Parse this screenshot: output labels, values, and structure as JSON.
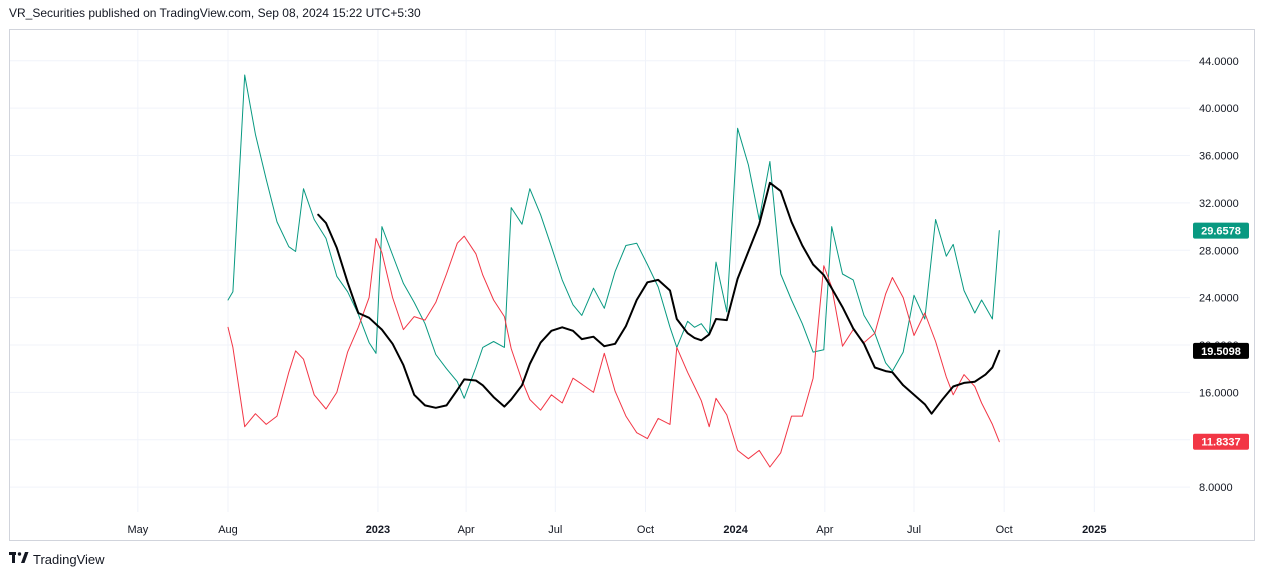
{
  "header": {
    "text": "VR_Securities published on TradingView.com, Sep 08, 2024 15:22 UTC+5:30"
  },
  "footer": {
    "brand": "TradingView",
    "logo_icon": "tradingview-logo-icon"
  },
  "chart_data": {
    "type": "line",
    "title": "",
    "xlabel": "",
    "ylabel": "",
    "ylim": [
      5.9,
      46.6
    ],
    "y_ticks": [
      "44.0000",
      "40.0000",
      "36.0000",
      "32.0000",
      "28.0000",
      "24.0000",
      "20.0000",
      "16.0000",
      "12.0000",
      "8.0000"
    ],
    "x_ticks": [
      "May",
      "Aug",
      "2023",
      "Apr",
      "Jul",
      "Oct",
      "2024",
      "Apr",
      "Jul",
      "Oct",
      "2025"
    ],
    "x_ticks_bold": [
      "2023",
      "2024",
      "2025"
    ],
    "grid": true,
    "colors": {
      "teal": "#089981",
      "red": "#f23645",
      "black": "#000000",
      "grid": "#f0f3fa",
      "axis_text": "#131722"
    },
    "price_labels": [
      {
        "series": 0,
        "text": "29.6578",
        "value": 29.6578,
        "bg": "#089981",
        "fg": "#ffffff"
      },
      {
        "series": 2,
        "text": "19.5098",
        "value": 19.5098,
        "bg": "#000000",
        "fg": "#ffffff"
      },
      {
        "series": 1,
        "text": "11.8337",
        "value": 11.8337,
        "bg": "#f23645",
        "fg": "#ffffff"
      }
    ],
    "series": [
      {
        "color": "#089981",
        "width": 1,
        "points": [
          [
            "2022-08-01",
            23.8
          ],
          [
            "2022-08-06",
            24.5
          ],
          [
            "2022-08-18",
            42.8
          ],
          [
            "2022-08-29",
            37.8
          ],
          [
            "2022-09-09",
            34.0
          ],
          [
            "2022-09-20",
            30.4
          ],
          [
            "2022-10-02",
            28.3
          ],
          [
            "2022-10-09",
            27.9
          ],
          [
            "2022-10-17",
            33.2
          ],
          [
            "2022-10-28",
            30.6
          ],
          [
            "2022-11-09",
            29.0
          ],
          [
            "2022-11-20",
            25.8
          ],
          [
            "2022-12-01",
            24.5
          ],
          [
            "2022-12-12",
            22.6
          ],
          [
            "2022-12-23",
            20.2
          ],
          [
            "2022-12-30",
            19.3
          ],
          [
            "2023-01-05",
            30.0
          ],
          [
            "2023-01-16",
            27.6
          ],
          [
            "2023-01-27",
            25.2
          ],
          [
            "2023-02-07",
            23.6
          ],
          [
            "2023-02-18",
            21.8
          ],
          [
            "2023-03-01",
            19.2
          ],
          [
            "2023-03-12",
            18.0
          ],
          [
            "2023-03-23",
            16.9
          ],
          [
            "2023-03-30",
            15.5
          ],
          [
            "2023-04-11",
            18.1
          ],
          [
            "2023-04-18",
            19.8
          ],
          [
            "2023-04-29",
            20.3
          ],
          [
            "2023-05-10",
            19.8
          ],
          [
            "2023-05-17",
            31.6
          ],
          [
            "2023-05-28",
            30.2
          ],
          [
            "2023-06-05",
            33.2
          ],
          [
            "2023-06-16",
            31.0
          ],
          [
            "2023-06-27",
            28.3
          ],
          [
            "2023-07-08",
            25.5
          ],
          [
            "2023-07-19",
            23.4
          ],
          [
            "2023-07-28",
            22.5
          ],
          [
            "2023-08-09",
            24.8
          ],
          [
            "2023-08-20",
            23.1
          ],
          [
            "2023-08-31",
            26.2
          ],
          [
            "2023-09-11",
            28.4
          ],
          [
            "2023-09-22",
            28.6
          ],
          [
            "2023-10-03",
            26.8
          ],
          [
            "2023-10-14",
            24.9
          ],
          [
            "2023-10-26",
            21.5
          ],
          [
            "2023-11-02",
            19.8
          ],
          [
            "2023-11-13",
            22.0
          ],
          [
            "2023-11-20",
            21.5
          ],
          [
            "2023-11-27",
            21.8
          ],
          [
            "2023-12-05",
            20.9
          ],
          [
            "2023-12-12",
            27.0
          ],
          [
            "2023-12-23",
            22.8
          ],
          [
            "2024-01-03",
            38.3
          ],
          [
            "2024-01-14",
            35.2
          ],
          [
            "2024-01-25",
            30.6
          ],
          [
            "2024-02-05",
            35.5
          ],
          [
            "2024-02-16",
            26.0
          ],
          [
            "2024-02-27",
            23.8
          ],
          [
            "2024-03-09",
            21.8
          ],
          [
            "2024-03-20",
            19.4
          ],
          [
            "2024-03-31",
            19.6
          ],
          [
            "2024-04-08",
            30.0
          ],
          [
            "2024-04-19",
            26.0
          ],
          [
            "2024-04-30",
            25.5
          ],
          [
            "2024-05-11",
            22.5
          ],
          [
            "2024-05-22",
            21.0
          ],
          [
            "2024-06-02",
            18.5
          ],
          [
            "2024-06-09",
            17.8
          ],
          [
            "2024-06-20",
            19.4
          ],
          [
            "2024-07-01",
            24.2
          ],
          [
            "2024-07-12",
            22.2
          ],
          [
            "2024-07-23",
            30.6
          ],
          [
            "2024-08-03",
            27.5
          ],
          [
            "2024-08-10",
            28.5
          ],
          [
            "2024-08-21",
            24.6
          ],
          [
            "2024-09-01",
            22.7
          ],
          [
            "2024-09-08",
            23.8
          ],
          [
            "2024-09-19",
            22.2
          ],
          [
            "2024-09-26",
            29.6578
          ]
        ]
      },
      {
        "color": "#f23645",
        "width": 1,
        "points": [
          [
            "2022-08-01",
            21.5
          ],
          [
            "2022-08-06",
            19.8
          ],
          [
            "2022-08-18",
            13.1
          ],
          [
            "2022-08-29",
            14.2
          ],
          [
            "2022-09-09",
            13.3
          ],
          [
            "2022-09-20",
            14.0
          ],
          [
            "2022-10-02",
            17.7
          ],
          [
            "2022-10-09",
            19.5
          ],
          [
            "2022-10-17",
            18.8
          ],
          [
            "2022-10-28",
            15.8
          ],
          [
            "2022-11-09",
            14.6
          ],
          [
            "2022-11-20",
            16.0
          ],
          [
            "2022-12-01",
            19.4
          ],
          [
            "2022-12-12",
            21.5
          ],
          [
            "2022-12-23",
            24.0
          ],
          [
            "2022-12-30",
            29.0
          ],
          [
            "2023-01-05",
            27.8
          ],
          [
            "2023-01-16",
            24.0
          ],
          [
            "2023-01-27",
            21.3
          ],
          [
            "2023-02-07",
            22.4
          ],
          [
            "2023-02-18",
            22.1
          ],
          [
            "2023-03-01",
            23.6
          ],
          [
            "2023-03-12",
            26.0
          ],
          [
            "2023-03-23",
            28.6
          ],
          [
            "2023-03-30",
            29.2
          ],
          [
            "2023-04-11",
            27.7
          ],
          [
            "2023-04-18",
            25.9
          ],
          [
            "2023-04-29",
            23.8
          ],
          [
            "2023-05-10",
            22.4
          ],
          [
            "2023-05-17",
            19.7
          ],
          [
            "2023-05-28",
            17.0
          ],
          [
            "2023-06-05",
            15.4
          ],
          [
            "2023-06-16",
            14.5
          ],
          [
            "2023-06-27",
            15.8
          ],
          [
            "2023-07-08",
            15.1
          ],
          [
            "2023-07-19",
            17.2
          ],
          [
            "2023-07-28",
            16.7
          ],
          [
            "2023-08-09",
            16.0
          ],
          [
            "2023-08-20",
            19.3
          ],
          [
            "2023-08-31",
            16.1
          ],
          [
            "2023-09-11",
            14.0
          ],
          [
            "2023-09-22",
            12.6
          ],
          [
            "2023-10-03",
            12.1
          ],
          [
            "2023-10-14",
            13.8
          ],
          [
            "2023-10-26",
            13.3
          ],
          [
            "2023-11-02",
            19.8
          ],
          [
            "2023-11-13",
            17.7
          ],
          [
            "2023-11-20",
            16.5
          ],
          [
            "2023-11-27",
            15.3
          ],
          [
            "2023-12-05",
            13.1
          ],
          [
            "2023-12-12",
            15.5
          ],
          [
            "2023-12-23",
            14.1
          ],
          [
            "2024-01-03",
            11.1
          ],
          [
            "2024-01-14",
            10.4
          ],
          [
            "2024-01-25",
            11.1
          ],
          [
            "2024-02-05",
            9.7
          ],
          [
            "2024-02-16",
            10.9
          ],
          [
            "2024-02-27",
            14.0
          ],
          [
            "2024-03-09",
            14.0
          ],
          [
            "2024-03-20",
            17.2
          ],
          [
            "2024-03-31",
            26.7
          ],
          [
            "2024-04-08",
            24.9
          ],
          [
            "2024-04-19",
            19.9
          ],
          [
            "2024-04-30",
            21.3
          ],
          [
            "2024-05-11",
            20.2
          ],
          [
            "2024-05-22",
            21.0
          ],
          [
            "2024-06-02",
            24.3
          ],
          [
            "2024-06-09",
            25.7
          ],
          [
            "2024-06-20",
            24.0
          ],
          [
            "2024-07-01",
            20.8
          ],
          [
            "2024-07-12",
            22.7
          ],
          [
            "2024-07-23",
            20.3
          ],
          [
            "2024-08-03",
            17.3
          ],
          [
            "2024-08-10",
            15.8
          ],
          [
            "2024-08-21",
            17.5
          ],
          [
            "2024-09-01",
            16.5
          ],
          [
            "2024-09-08",
            15.1
          ],
          [
            "2024-09-19",
            13.3
          ],
          [
            "2024-09-26",
            11.8337
          ]
        ]
      },
      {
        "color": "#000000",
        "width": 2,
        "points": [
          [
            "2022-11-01",
            31.0
          ],
          [
            "2022-11-09",
            30.3
          ],
          [
            "2022-11-20",
            28.2
          ],
          [
            "2022-12-01",
            25.3
          ],
          [
            "2022-12-12",
            22.7
          ],
          [
            "2022-12-23",
            22.3
          ],
          [
            "2023-01-05",
            21.3
          ],
          [
            "2023-01-16",
            20.1
          ],
          [
            "2023-01-27",
            18.3
          ],
          [
            "2023-02-07",
            15.8
          ],
          [
            "2023-02-18",
            14.9
          ],
          [
            "2023-03-01",
            14.7
          ],
          [
            "2023-03-12",
            14.9
          ],
          [
            "2023-03-23",
            16.2
          ],
          [
            "2023-03-30",
            17.1
          ],
          [
            "2023-04-11",
            17.0
          ],
          [
            "2023-04-18",
            16.6
          ],
          [
            "2023-04-29",
            15.6
          ],
          [
            "2023-05-10",
            14.8
          ],
          [
            "2023-05-17",
            15.4
          ],
          [
            "2023-05-28",
            16.6
          ],
          [
            "2023-06-05",
            18.4
          ],
          [
            "2023-06-16",
            20.2
          ],
          [
            "2023-06-27",
            21.2
          ],
          [
            "2023-07-08",
            21.5
          ],
          [
            "2023-07-19",
            21.2
          ],
          [
            "2023-07-28",
            20.5
          ],
          [
            "2023-08-09",
            20.7
          ],
          [
            "2023-08-20",
            19.9
          ],
          [
            "2023-08-31",
            20.1
          ],
          [
            "2023-09-11",
            21.6
          ],
          [
            "2023-09-22",
            23.8
          ],
          [
            "2023-10-03",
            25.3
          ],
          [
            "2023-10-14",
            25.5
          ],
          [
            "2023-10-26",
            24.6
          ],
          [
            "2023-11-02",
            22.2
          ],
          [
            "2023-11-13",
            21.0
          ],
          [
            "2023-11-20",
            20.6
          ],
          [
            "2023-11-27",
            20.4
          ],
          [
            "2023-12-05",
            20.9
          ],
          [
            "2023-12-12",
            22.2
          ],
          [
            "2023-12-23",
            22.1
          ],
          [
            "2024-01-03",
            25.6
          ],
          [
            "2024-01-14",
            27.9
          ],
          [
            "2024-01-25",
            30.2
          ],
          [
            "2024-02-05",
            33.7
          ],
          [
            "2024-02-16",
            33.0
          ],
          [
            "2024-02-27",
            30.4
          ],
          [
            "2024-03-09",
            28.4
          ],
          [
            "2024-03-20",
            26.8
          ],
          [
            "2024-03-31",
            25.9
          ],
          [
            "2024-04-08",
            24.8
          ],
          [
            "2024-04-19",
            23.2
          ],
          [
            "2024-04-30",
            21.4
          ],
          [
            "2024-05-11",
            20.1
          ],
          [
            "2024-05-22",
            18.1
          ],
          [
            "2024-06-02",
            17.8
          ],
          [
            "2024-06-09",
            17.7
          ],
          [
            "2024-06-20",
            16.6
          ],
          [
            "2024-07-01",
            15.8
          ],
          [
            "2024-07-12",
            15.0
          ],
          [
            "2024-07-19",
            14.2
          ],
          [
            "2024-07-30",
            15.4
          ],
          [
            "2024-08-10",
            16.5
          ],
          [
            "2024-08-21",
            16.8
          ],
          [
            "2024-09-01",
            16.9
          ],
          [
            "2024-09-12",
            17.5
          ],
          [
            "2024-09-19",
            18.1
          ],
          [
            "2024-09-26",
            19.5098
          ]
        ]
      }
    ]
  }
}
